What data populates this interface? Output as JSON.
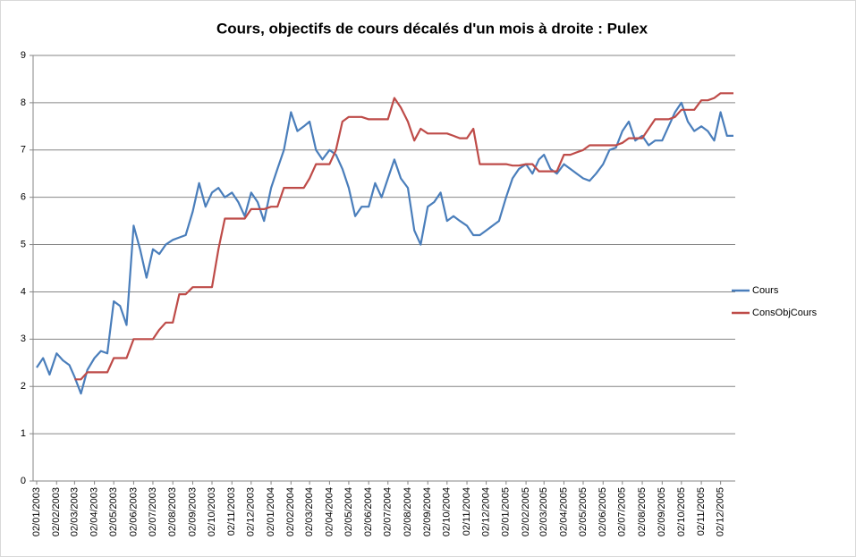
{
  "chart_data": {
    "type": "line",
    "title": "Cours, objectifs de cours décalés d'un mois à droite : Pulex",
    "x": [
      "02/01/2003",
      "12/01/2003",
      "22/01/2003",
      "02/02/2003",
      "12/02/2003",
      "22/02/2003",
      "02/03/2003",
      "12/03/2003",
      "22/03/2003",
      "02/04/2003",
      "12/04/2003",
      "22/04/2003",
      "02/05/2003",
      "12/05/2003",
      "22/05/2003",
      "02/06/2003",
      "12/06/2003",
      "22/06/2003",
      "02/07/2003",
      "12/07/2003",
      "22/07/2003",
      "02/08/2003",
      "12/08/2003",
      "22/08/2003",
      "02/09/2003",
      "12/09/2003",
      "22/09/2003",
      "02/10/2003",
      "12/10/2003",
      "22/10/2003",
      "02/11/2003",
      "12/11/2003",
      "22/11/2003",
      "02/12/2003",
      "12/12/2003",
      "22/12/2003",
      "02/01/2004",
      "12/01/2004",
      "22/01/2004",
      "02/02/2004",
      "12/02/2004",
      "22/02/2004",
      "02/03/2004",
      "12/03/2004",
      "22/03/2004",
      "02/04/2004",
      "12/04/2004",
      "22/04/2004",
      "02/05/2004",
      "12/05/2004",
      "22/05/2004",
      "02/06/2004",
      "12/06/2004",
      "22/06/2004",
      "02/07/2004",
      "12/07/2004",
      "22/07/2004",
      "02/08/2004",
      "12/08/2004",
      "22/08/2004",
      "02/09/2004",
      "12/09/2004",
      "22/09/2004",
      "02/10/2004",
      "12/10/2004",
      "22/10/2004",
      "02/11/2004",
      "12/11/2004",
      "22/11/2004",
      "02/12/2004",
      "12/12/2004",
      "22/12/2004",
      "02/01/2005",
      "12/01/2005",
      "22/01/2005",
      "02/02/2005",
      "12/02/2005",
      "22/02/2005",
      "02/03/2005",
      "12/03/2005",
      "22/03/2005",
      "02/04/2005",
      "12/04/2005",
      "22/04/2005",
      "02/05/2005",
      "12/05/2005",
      "22/05/2005",
      "02/06/2005",
      "12/06/2005",
      "22/06/2005",
      "02/07/2005",
      "12/07/2005",
      "22/07/2005",
      "02/08/2005",
      "12/08/2005",
      "22/08/2005",
      "02/09/2005",
      "12/09/2005",
      "22/09/2005",
      "02/10/2005",
      "12/10/2005",
      "22/10/2005",
      "02/11/2005",
      "12/11/2005",
      "22/11/2005",
      "02/12/2005",
      "12/12/2005",
      "22/12/2005"
    ],
    "series": [
      {
        "name": "Cours",
        "color": "#4a7ebb",
        "values": [
          2.4,
          2.6,
          2.25,
          2.7,
          2.55,
          2.45,
          2.2,
          1.85,
          2.35,
          2.6,
          2.75,
          2.7,
          3.8,
          3.7,
          3.3,
          5.4,
          4.9,
          4.3,
          4.9,
          4.8,
          5.0,
          5.1,
          5.15,
          5.2,
          5.7,
          6.3,
          5.8,
          6.1,
          6.2,
          6.0,
          6.1,
          5.9,
          5.6,
          6.1,
          5.9,
          5.5,
          6.2,
          6.6,
          7.0,
          7.8,
          7.4,
          7.5,
          7.6,
          7.0,
          6.8,
          7.0,
          6.9,
          6.6,
          6.2,
          5.6,
          5.8,
          5.8,
          6.3,
          6.0,
          6.4,
          6.8,
          6.4,
          6.2,
          5.3,
          5.0,
          5.8,
          5.9,
          6.1,
          5.5,
          5.6,
          5.5,
          5.4,
          5.2,
          5.2,
          5.3,
          5.4,
          5.5,
          6.0,
          6.4,
          6.6,
          6.7,
          6.5,
          6.8,
          6.9,
          6.6,
          6.5,
          6.7,
          6.6,
          6.5,
          6.4,
          6.35,
          6.5,
          6.7,
          7.0,
          7.05,
          7.4,
          7.6,
          7.2,
          7.3,
          7.1,
          7.2,
          7.2,
          7.5,
          7.8,
          8.0,
          7.6,
          7.4,
          7.5,
          7.4,
          7.2,
          7.8,
          7.3,
          7.3
        ]
      },
      {
        "name": "ConsObjCours",
        "color": "#be4b48",
        "values": [
          null,
          null,
          null,
          null,
          null,
          null,
          2.15,
          2.15,
          2.3,
          2.3,
          2.3,
          2.3,
          2.6,
          2.6,
          2.6,
          3.0,
          3.0,
          3.0,
          3.0,
          3.2,
          3.35,
          3.35,
          3.95,
          3.95,
          4.1,
          4.1,
          4.1,
          4.1,
          4.9,
          5.55,
          5.55,
          5.55,
          5.55,
          5.75,
          5.75,
          5.75,
          5.8,
          5.8,
          6.2,
          6.2,
          6.2,
          6.2,
          6.4,
          6.7,
          6.7,
          6.7,
          7.0,
          7.6,
          7.7,
          7.7,
          7.7,
          7.65,
          7.65,
          7.65,
          7.65,
          8.1,
          7.9,
          7.6,
          7.2,
          7.45,
          7.35,
          7.35,
          7.35,
          7.35,
          7.3,
          7.25,
          7.25,
          7.45,
          6.7,
          6.7,
          6.7,
          6.7,
          6.7,
          6.67,
          6.67,
          6.7,
          6.7,
          6.55,
          6.55,
          6.55,
          6.55,
          6.9,
          6.9,
          6.95,
          7.0,
          7.1,
          7.1,
          7.1,
          7.1,
          7.1,
          7.15,
          7.25,
          7.25,
          7.25,
          7.45,
          7.65,
          7.65,
          7.65,
          7.7,
          7.85,
          7.85,
          7.85,
          8.05,
          8.05,
          8.1,
          8.2,
          8.2,
          8.2
        ]
      }
    ],
    "xticks": [
      "02/01/2003",
      "02/02/2003",
      "02/03/2003",
      "02/04/2003",
      "02/05/2003",
      "02/06/2003",
      "02/07/2003",
      "02/08/2003",
      "02/09/2003",
      "02/10/2003",
      "02/11/2003",
      "02/12/2003",
      "02/01/2004",
      "02/02/2004",
      "02/03/2004",
      "02/04/2004",
      "02/05/2004",
      "02/06/2004",
      "02/07/2004",
      "02/08/2004",
      "02/09/2004",
      "02/10/2004",
      "02/11/2004",
      "02/12/2004",
      "02/01/2005",
      "02/02/2005",
      "02/03/2005",
      "02/04/2005",
      "02/05/2005",
      "02/06/2005",
      "02/07/2005",
      "02/08/2005",
      "02/09/2005",
      "02/10/2005",
      "02/11/2005",
      "02/12/2005"
    ],
    "ylim": [
      0,
      9
    ],
    "yticks": [
      0,
      1,
      2,
      3,
      4,
      5,
      6,
      7,
      8,
      9
    ],
    "grid": true,
    "legend": "right"
  }
}
